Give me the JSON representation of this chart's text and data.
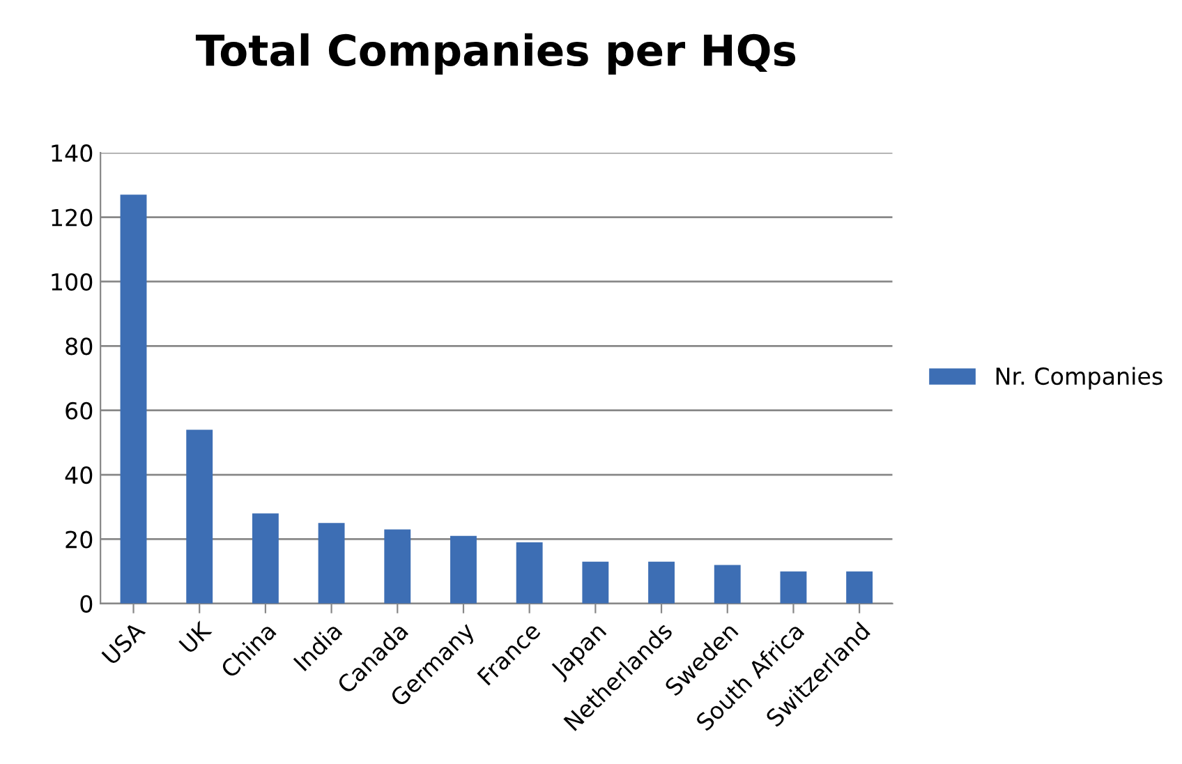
{
  "chart_data": {
    "type": "bar",
    "title": "Total Companies per HQs",
    "categories": [
      "USA",
      "UK",
      "China",
      "India",
      "Canada",
      "Germany",
      "France",
      "Japan",
      "Netherlands",
      "Sweden",
      "South Africa",
      "Switzerland"
    ],
    "series": [
      {
        "name": "Nr. Companies",
        "color": "#3d6eb4",
        "values": [
          127,
          54,
          28,
          25,
          23,
          21,
          19,
          13,
          13,
          12,
          10,
          10
        ]
      }
    ],
    "ylim": [
      0,
      140
    ],
    "yticks": [
      0,
      20,
      40,
      60,
      80,
      100,
      120,
      140
    ],
    "grid": "y",
    "legend": "right"
  }
}
